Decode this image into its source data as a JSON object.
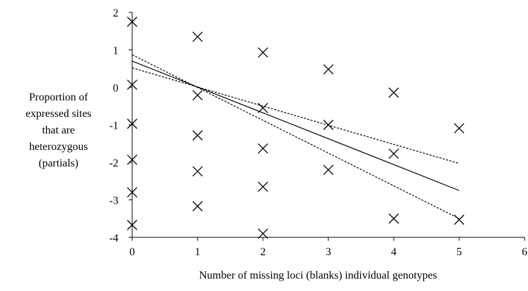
{
  "chart_data": {
    "type": "scatter",
    "title": "",
    "xlabel": "Number of missing loci (blanks) individual genotypes",
    "ylabel_lines": [
      "Proportion of",
      "expressed sites",
      "that are",
      "heterozygous",
      "(partials)"
    ],
    "xlim": [
      0,
      6
    ],
    "ylim": [
      -4,
      2
    ],
    "x_ticks": [
      "0",
      "1",
      "2",
      "3",
      "4",
      "5",
      "6"
    ],
    "y_ticks": [
      "-4",
      "-3",
      "-2",
      "-1",
      "0",
      "1",
      "2"
    ],
    "grid": false,
    "marker": "x",
    "points": [
      {
        "x": 0,
        "y": 1.75
      },
      {
        "x": 0,
        "y": 0.07
      },
      {
        "x": 0,
        "y": -0.97
      },
      {
        "x": 0,
        "y": -1.93
      },
      {
        "x": 0,
        "y": -2.8
      },
      {
        "x": 0,
        "y": -3.67
      },
      {
        "x": 1,
        "y": 1.35
      },
      {
        "x": 1,
        "y": -0.21
      },
      {
        "x": 1,
        "y": -1.28
      },
      {
        "x": 1,
        "y": -2.24
      },
      {
        "x": 1,
        "y": -3.17
      },
      {
        "x": 2,
        "y": 0.93
      },
      {
        "x": 2,
        "y": -0.55
      },
      {
        "x": 2,
        "y": -1.63
      },
      {
        "x": 2,
        "y": -2.65
      },
      {
        "x": 2,
        "y": -3.9
      },
      {
        "x": 3,
        "y": 0.48
      },
      {
        "x": 3,
        "y": -1.0
      },
      {
        "x": 3,
        "y": -2.2
      },
      {
        "x": 4,
        "y": -0.14
      },
      {
        "x": 4,
        "y": -1.77
      },
      {
        "x": 4,
        "y": -3.5
      },
      {
        "x": 5,
        "y": -1.09
      },
      {
        "x": 5,
        "y": -3.53
      }
    ],
    "lines": [
      {
        "style": "solid",
        "x": [
          0,
          5
        ],
        "y": [
          0.7,
          -2.75
        ]
      },
      {
        "style": "dashed",
        "x": [
          0,
          5
        ],
        "y": [
          0.87,
          -3.5
        ]
      },
      {
        "style": "dashed",
        "x": [
          0,
          5
        ],
        "y": [
          0.52,
          -2.03
        ]
      }
    ]
  }
}
